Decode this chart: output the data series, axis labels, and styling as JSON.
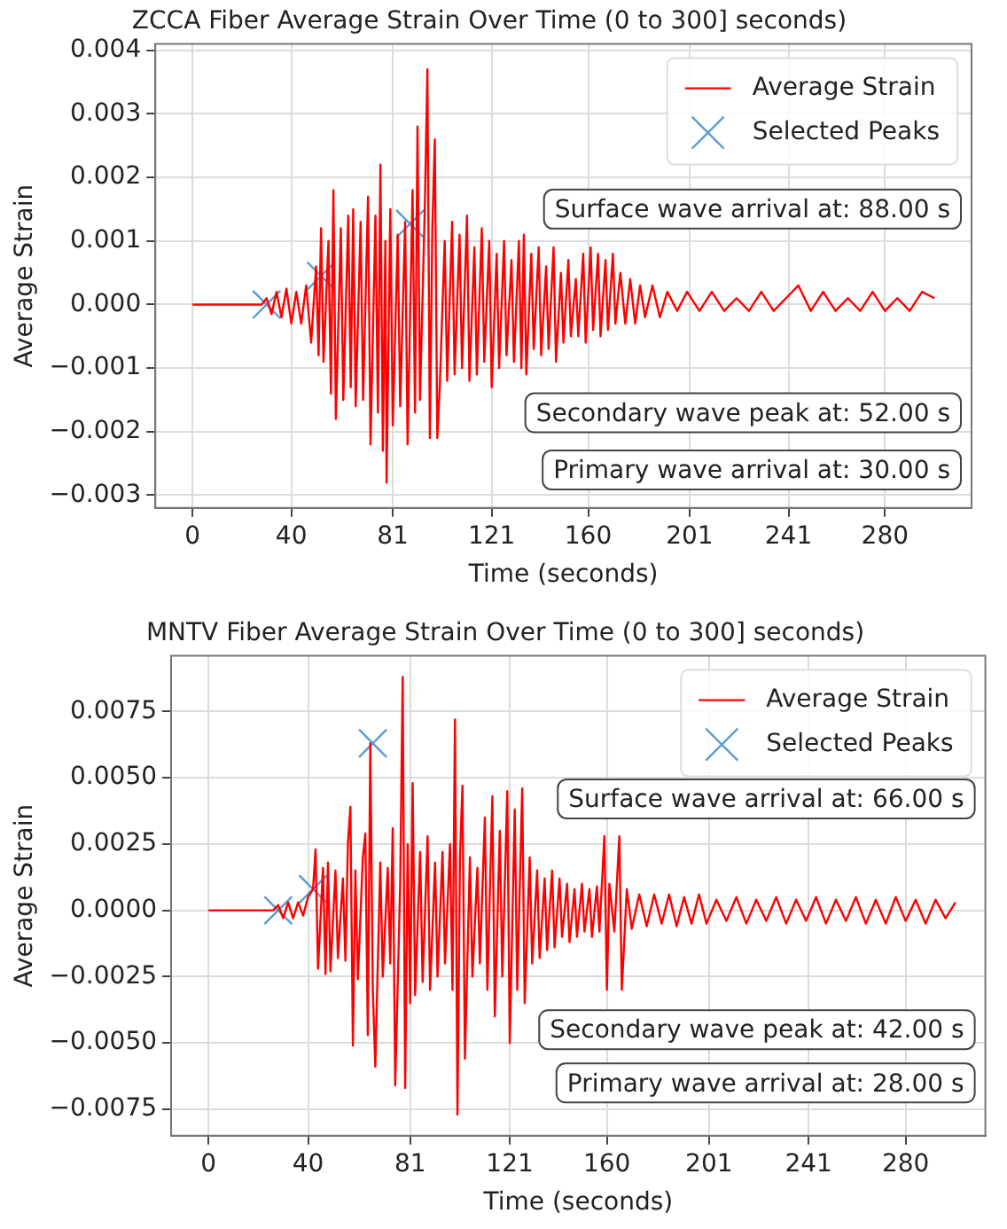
{
  "chart_data": [
    {
      "type": "line",
      "title": "ZCCA Fiber Average Strain Over Time (0 to 300] seconds)",
      "xlabel": "Time (seconds)",
      "ylabel": "Average Strain",
      "xlim": [
        -15,
        315
      ],
      "ylim": [
        -0.0032,
        0.0041
      ],
      "xticks": [
        0,
        40,
        81,
        121,
        160,
        201,
        241,
        280
      ],
      "yticks": [
        {
          "value": -0.003,
          "label": "−0.003"
        },
        {
          "value": -0.002,
          "label": "−0.002"
        },
        {
          "value": -0.001,
          "label": "−0.001"
        },
        {
          "value": 0,
          "label": "0.000"
        },
        {
          "value": 0.001,
          "label": "0.001"
        },
        {
          "value": 0.002,
          "label": "0.002"
        },
        {
          "value": 0.003,
          "label": "0.003"
        },
        {
          "value": 0.004,
          "label": "0.004"
        }
      ],
      "grid": true,
      "legend": "top right",
      "annotations": [
        "Surface wave arrival at: 88.00 s",
        "Secondary wave peak at: 52.00 s",
        "Primary wave arrival at: 30.00 s"
      ],
      "series": [
        {
          "name": "Average Strain",
          "color": "#ff0000",
          "marker": "none",
          "x": [
            0,
            20,
            28,
            30,
            32,
            34,
            36,
            38,
            40,
            42,
            44,
            46,
            48,
            50,
            51,
            52,
            53,
            55,
            56,
            57,
            58,
            60,
            61,
            63,
            64,
            65,
            66,
            68,
            69,
            71,
            72,
            74,
            75,
            76,
            77,
            78,
            78.5,
            80,
            81,
            83,
            84,
            86,
            87,
            89,
            90,
            91,
            92,
            94,
            95,
            96,
            97,
            98,
            99,
            100,
            102,
            103,
            105,
            106,
            108,
            109,
            111,
            112,
            114,
            115,
            117,
            118,
            120,
            121,
            123,
            124,
            126,
            127,
            129,
            130,
            132,
            133,
            134,
            135,
            137,
            138,
            140,
            141,
            143,
            144,
            146,
            147,
            149,
            150,
            152,
            153,
            155,
            156,
            158,
            159,
            161,
            162,
            164,
            165,
            167,
            168,
            170,
            171,
            173,
            175,
            177,
            179,
            181,
            183,
            186,
            189,
            192,
            196,
            200,
            205,
            210,
            215,
            220,
            225,
            230,
            235,
            240,
            245,
            250,
            255,
            260,
            265,
            270,
            275,
            280,
            285,
            290,
            295,
            300
          ],
          "values": [
            0,
            0,
            0,
            0.0001,
            -0.00015,
            0.0002,
            -0.0002,
            0.00025,
            -0.0003,
            0.0002,
            -0.0003,
            0.0003,
            -0.0006,
            0.0006,
            -0.0008,
            0.0012,
            -0.0009,
            0.001,
            -0.0014,
            0.0018,
            -0.0018,
            0.0012,
            -0.0015,
            0.0014,
            -0.0013,
            0.0015,
            -0.0016,
            0.0013,
            -0.0015,
            0.0017,
            -0.0022,
            0.0014,
            -0.0017,
            0.0022,
            -0.0023,
            0.001,
            -0.0028,
            0.0015,
            -0.0019,
            0.0011,
            -0.0016,
            0.0013,
            -0.0022,
            0.0018,
            -0.0017,
            0.0028,
            -0.0015,
            0.0016,
            0.0037,
            -0.0021,
            0.0012,
            0.0026,
            -0.0021,
            -0.0013,
            0.001,
            -0.0012,
            0.0013,
            -0.0011,
            0.0011,
            -0.001,
            0.0014,
            -0.0012,
            0.0009,
            -0.0011,
            0.0012,
            -0.0009,
            0.001,
            -0.0013,
            0.0008,
            -0.001,
            0.001,
            -0.0008,
            0.0007,
            -0.0009,
            0.001,
            -0.001,
            0.0011,
            -0.0011,
            0.0008,
            -0.0007,
            0.0009,
            -0.0008,
            0.0006,
            -0.0007,
            0.0009,
            -0.0009,
            0.0005,
            -0.0006,
            0.0007,
            -0.0005,
            0.0004,
            -0.0005,
            0.0008,
            -0.0006,
            0.0009,
            -0.0004,
            0.0008,
            -0.0005,
            0.0007,
            -0.0004,
            0.0008,
            -0.0003,
            0.0005,
            -0.0003,
            0.0004,
            -0.0003,
            0.0003,
            -0.0002,
            0.0003,
            -0.0002,
            0.0002,
            -0.0001,
            0.0002,
            -0.0001,
            0.0002,
            -0.0001,
            0.0001,
            -0.0001,
            0.0002,
            -0.0001,
            0.0001,
            0.0003,
            -0.0001,
            0.0002,
            -0.0001,
            0.0001,
            -0.0001,
            0.0002,
            -0.0001,
            0.0001,
            -0.0001,
            0.0002,
            0.0001
          ]
        },
        {
          "name": "Selected Peaks",
          "type": "scatter",
          "color": "#5b9bd5",
          "marker": "cross",
          "x": [
            30,
            52,
            88
          ],
          "values": [
            0,
            0.00045,
            0.00127
          ]
        }
      ]
    },
    {
      "type": "line",
      "title": "MNTV Fiber Average Strain Over Time (0 to 300] seconds)",
      "xlabel": "Time (seconds)",
      "ylabel": "Average Strain",
      "xlim": [
        -15,
        312
      ],
      "ylim": [
        -0.0085,
        0.0096
      ],
      "xticks": [
        0,
        40,
        81,
        121,
        160,
        201,
        241,
        280
      ],
      "yticks": [
        {
          "value": -0.0075,
          "label": "−0.0075"
        },
        {
          "value": -0.005,
          "label": "−0.0050"
        },
        {
          "value": -0.0025,
          "label": "−0.0025"
        },
        {
          "value": 0,
          "label": "0.0000"
        },
        {
          "value": 0.0025,
          "label": "0.0025"
        },
        {
          "value": 0.005,
          "label": "0.0050"
        },
        {
          "value": 0.0075,
          "label": "0.0075"
        }
      ],
      "grid": true,
      "legend": "top right",
      "annotations": [
        "Surface wave arrival at: 66.00 s",
        "Secondary wave peak at: 42.00 s",
        "Primary wave arrival at: 28.00 s"
      ],
      "series": [
        {
          "name": "Average Strain",
          "color": "#ff0000",
          "marker": "none",
          "x": [
            0,
            20,
            26,
            28,
            30,
            32,
            34,
            36,
            38,
            40,
            42,
            43,
            44,
            46,
            47,
            48,
            49,
            51,
            52,
            54,
            55,
            56,
            57,
            58,
            59,
            60,
            62,
            63,
            64,
            65,
            66,
            67,
            69,
            70,
            72,
            73,
            74,
            75,
            77,
            78,
            79,
            80,
            81,
            82,
            83,
            85,
            86,
            88,
            89,
            91,
            92,
            94,
            95,
            97,
            98,
            99,
            100,
            101,
            102,
            103,
            105,
            106,
            108,
            109,
            111,
            112,
            114,
            115,
            117,
            118,
            120,
            121,
            123,
            124,
            126,
            127,
            129,
            130,
            132,
            133,
            135,
            136,
            138,
            139,
            141,
            142,
            144,
            145,
            147,
            148,
            150,
            151,
            153,
            154,
            156,
            157,
            159,
            160,
            161,
            163,
            165,
            166,
            168,
            170,
            173,
            176,
            179,
            182,
            185,
            188,
            191,
            194,
            197,
            200,
            204,
            208,
            212,
            216,
            220,
            224,
            228,
            232,
            236,
            240,
            244,
            248,
            252,
            256,
            260,
            264,
            268,
            272,
            276,
            280,
            284,
            288,
            292,
            296,
            300
          ],
          "values": [
            0,
            0,
            0,
            0.0002,
            -0.0003,
            0.0003,
            -0.0003,
            0.0003,
            -0.0002,
            0.0005,
            0.0008,
            0.0023,
            -0.0022,
            0.0016,
            -0.0024,
            0.0018,
            -0.0023,
            0.0015,
            -0.0018,
            0.0012,
            -0.0019,
            0.0025,
            0.0039,
            -0.0051,
            0.0015,
            -0.0026,
            0.002,
            0.0029,
            -0.0047,
            0.0063,
            -0.003,
            -0.0059,
            0.0018,
            -0.0025,
            0.0016,
            -0.002,
            0.0031,
            -0.0066,
            0.001,
            0.0088,
            -0.0067,
            0.0025,
            -0.0035,
            0.0048,
            -0.0032,
            0.0022,
            -0.0027,
            0.0028,
            -0.003,
            0.0018,
            -0.0025,
            0.0022,
            -0.002,
            0.0025,
            -0.003,
            0.0072,
            -0.0077,
            0.002,
            0.0047,
            -0.0056,
            0.002,
            -0.0025,
            0.0016,
            -0.002,
            0.0035,
            -0.003,
            0.0043,
            -0.004,
            0.003,
            -0.0025,
            0.0045,
            -0.005,
            0.0038,
            -0.003,
            0.0046,
            -0.0035,
            0.002,
            -0.002,
            0.0015,
            -0.0018,
            0.0012,
            -0.0015,
            0.0015,
            -0.0014,
            0.0012,
            -0.001,
            0.001,
            -0.0012,
            0.0008,
            -0.001,
            0.001,
            -0.0008,
            0.0008,
            -0.001,
            0.0009,
            -0.0008,
            0.0028,
            -0.003,
            0.001,
            -0.0008,
            0.0028,
            -0.003,
            0.0008,
            -0.0007,
            0.0006,
            -0.0006,
            0.0006,
            -0.0005,
            0.0006,
            -0.0006,
            0.0005,
            -0.0005,
            0.0006,
            -0.0005,
            0.0004,
            -0.0004,
            0.0005,
            -0.0005,
            0.0004,
            -0.0004,
            0.0005,
            -0.0005,
            0.0004,
            -0.0004,
            0.0005,
            -0.0005,
            0.0004,
            -0.0004,
            0.0005,
            -0.0005,
            0.0004,
            -0.0005,
            0.0005,
            -0.0004,
            0.0004,
            -0.0005,
            0.0004,
            -0.0003,
            0.0003
          ]
        },
        {
          "name": "Selected Peaks",
          "type": "scatter",
          "color": "#5b9bd5",
          "marker": "cross",
          "x": [
            28,
            42,
            66
          ],
          "values": [
            0,
            0.0008,
            0.0063
          ]
        }
      ]
    }
  ]
}
